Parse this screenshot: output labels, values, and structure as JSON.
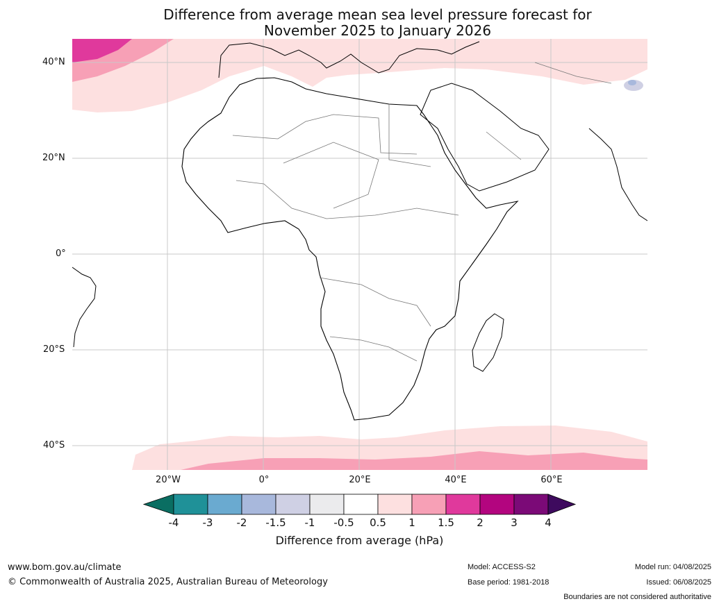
{
  "title_line1": "Difference from average mean sea level pressure forecast for",
  "title_line2": "November 2025 to January 2026",
  "lat_labels": [
    "40°N",
    "20°N",
    "0°",
    "20°S",
    "40°S"
  ],
  "lon_labels": [
    "20°W",
    "0°",
    "20°E",
    "40°E",
    "60°E"
  ],
  "colorbar": {
    "ticks": [
      "-4",
      "-3",
      "-2",
      "-1.5",
      "-1",
      "-0.5",
      "0.5",
      "1",
      "1.5",
      "2",
      "3",
      "4"
    ],
    "colors": [
      "#0a6e62",
      "#1f9198",
      "#6aaad0",
      "#a8b8dc",
      "#cfd0e4",
      "#ebebed",
      "#ffffff",
      "#fde0e0",
      "#f7a0b6",
      "#e0399c",
      "#b3057f",
      "#7b0a77",
      "#3e0a5e"
    ],
    "label": "Difference from average (hPa)"
  },
  "footer": {
    "website": "www.bom.gov.au/climate",
    "copyright": "© Commonwealth of Australia 2025, Australian Bureau of Meteorology",
    "model": "Model: ACCESS-S2",
    "base_period": "Base period: 1981-2018",
    "model_run": "Model run: 04/08/2025",
    "issued": "Issued: 06/08/2025",
    "disclaimer": "Boundaries are not considered authoritative"
  }
}
